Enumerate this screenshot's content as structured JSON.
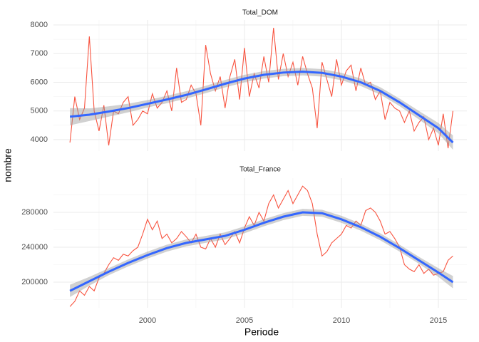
{
  "xlabel": "Periode",
  "ylabel": "nombre",
  "chart_data": [
    {
      "type": "line",
      "title": "Total_DOM",
      "xlim": [
        1995.15,
        2016.47
      ],
      "xticks": [
        2000,
        2005,
        2010,
        2015
      ],
      "xminor": [
        1997.5,
        2002.5,
        2007.5,
        2012.5
      ],
      "ylim": [
        3602,
        8174
      ],
      "yticks": [
        4000,
        5000,
        6000,
        7000,
        8000
      ],
      "yminor": [
        4500,
        5500,
        6500,
        7500
      ],
      "grid": true,
      "x": [
        1996,
        1996.25,
        1996.5,
        1996.75,
        1997,
        1997.25,
        1997.5,
        1997.75,
        1998,
        1998.25,
        1998.5,
        1998.75,
        1999,
        1999.25,
        1999.5,
        1999.75,
        2000,
        2000.25,
        2000.5,
        2000.75,
        2001,
        2001.25,
        2001.5,
        2001.75,
        2002,
        2002.25,
        2002.5,
        2002.75,
        2003,
        2003.25,
        2003.5,
        2003.75,
        2004,
        2004.25,
        2004.5,
        2004.75,
        2005,
        2005.25,
        2005.5,
        2005.75,
        2006,
        2006.25,
        2006.5,
        2006.75,
        2007,
        2007.25,
        2007.5,
        2007.75,
        2008,
        2008.25,
        2008.5,
        2008.75,
        2009,
        2009.25,
        2009.5,
        2009.75,
        2010,
        2010.25,
        2010.5,
        2010.75,
        2011,
        2011.25,
        2011.5,
        2011.75,
        2012,
        2012.25,
        2012.5,
        2012.75,
        2013,
        2013.25,
        2013.5,
        2013.75,
        2014,
        2014.25,
        2014.5,
        2014.75,
        2015,
        2015.25,
        2015.5,
        2015.75
      ],
      "series": [
        {
          "color": "#f8533f",
          "values": [
            3900,
            5500,
            4700,
            5100,
            7600,
            5000,
            4300,
            5200,
            3800,
            5000,
            4900,
            5300,
            5500,
            4500,
            4700,
            5000,
            4900,
            5600,
            5100,
            5300,
            5700,
            5000,
            6500,
            5300,
            5400,
            5900,
            5600,
            4500,
            7300,
            6300,
            5700,
            6200,
            5100,
            6200,
            6800,
            5400,
            7200,
            5500,
            6300,
            5800,
            6900,
            6000,
            7900,
            6100,
            7000,
            6200,
            6700,
            5900,
            6900,
            6300,
            5800,
            4400,
            6700,
            6100,
            5500,
            6800,
            5900,
            6400,
            6600,
            5700,
            6500,
            5900,
            6000,
            5400,
            5700,
            4700,
            5300,
            5100,
            5000,
            4600,
            5000,
            4300,
            4600,
            4800,
            4000,
            4400,
            3800,
            4900,
            3700,
            5000
          ]
        }
      ],
      "smooth": {
        "color": "#3366ff",
        "x": [
          1996,
          1997,
          1998,
          1999,
          2000,
          2001,
          2002,
          2003,
          2004,
          2005,
          2006,
          2007,
          2008,
          2009,
          2010,
          2011,
          2012,
          2013,
          2014,
          2015,
          2015.75
        ],
        "values": [
          4800,
          4870,
          4980,
          5100,
          5250,
          5400,
          5560,
          5750,
          5950,
          6130,
          6260,
          6340,
          6370,
          6330,
          6200,
          6000,
          5700,
          5300,
          4850,
          4400,
          3900
        ],
        "lower": [
          4500,
          4650,
          4800,
          4950,
          5120,
          5270,
          5430,
          5620,
          5820,
          6000,
          6130,
          6210,
          6240,
          6200,
          6070,
          5870,
          5570,
          5170,
          4700,
          4220,
          3650
        ],
        "upper": [
          5100,
          5090,
          5160,
          5250,
          5380,
          5530,
          5690,
          5880,
          6080,
          6260,
          6390,
          6470,
          6500,
          6460,
          6330,
          6130,
          5830,
          5430,
          5000,
          4580,
          4150
        ]
      }
    },
    {
      "type": "line",
      "title": "Total_France",
      "xlim": [
        1995.15,
        2016.47
      ],
      "xticks": [
        2000,
        2005,
        2010,
        2015
      ],
      "xminor": [
        1997.5,
        2002.5,
        2007.5,
        2012.5
      ],
      "ylim": [
        170600,
        319200
      ],
      "yticks": [
        200000,
        240000,
        280000
      ],
      "yminor": [
        180000,
        220000,
        260000,
        300000
      ],
      "grid": true,
      "x": [
        1996,
        1996.25,
        1996.5,
        1996.75,
        1997,
        1997.25,
        1997.5,
        1997.75,
        1998,
        1998.25,
        1998.5,
        1998.75,
        1999,
        1999.25,
        1999.5,
        1999.75,
        2000,
        2000.25,
        2000.5,
        2000.75,
        2001,
        2001.25,
        2001.5,
        2001.75,
        2002,
        2002.25,
        2002.5,
        2002.75,
        2003,
        2003.25,
        2003.5,
        2003.75,
        2004,
        2004.25,
        2004.5,
        2004.75,
        2005,
        2005.25,
        2005.5,
        2005.75,
        2006,
        2006.25,
        2006.5,
        2006.75,
        2007,
        2007.25,
        2007.5,
        2007.75,
        2008,
        2008.25,
        2008.5,
        2008.75,
        2009,
        2009.25,
        2009.5,
        2009.75,
        2010,
        2010.25,
        2010.5,
        2010.75,
        2011,
        2011.25,
        2011.5,
        2011.75,
        2012,
        2012.25,
        2012.5,
        2012.75,
        2013,
        2013.25,
        2013.5,
        2013.75,
        2014,
        2014.25,
        2014.5,
        2014.75,
        2015,
        2015.25,
        2015.5,
        2015.75
      ],
      "series": [
        {
          "color": "#f8533f",
          "values": [
            172000,
            178000,
            190000,
            185000,
            195000,
            190000,
            205000,
            210000,
            220000,
            228000,
            225000,
            232000,
            230000,
            236000,
            240000,
            255000,
            272000,
            260000,
            270000,
            250000,
            255000,
            245000,
            250000,
            258000,
            252000,
            245000,
            255000,
            240000,
            238000,
            250000,
            240000,
            255000,
            243000,
            250000,
            258000,
            245000,
            262000,
            275000,
            265000,
            280000,
            270000,
            290000,
            300000,
            285000,
            295000,
            305000,
            290000,
            300000,
            310000,
            305000,
            290000,
            255000,
            230000,
            235000,
            245000,
            250000,
            255000,
            265000,
            262000,
            270000,
            265000,
            282000,
            285000,
            280000,
            270000,
            255000,
            258000,
            250000,
            240000,
            220000,
            215000,
            212000,
            220000,
            210000,
            215000,
            208000,
            210000,
            212000,
            225000,
            230000
          ]
        }
      ],
      "smooth": {
        "color": "#3366ff",
        "x": [
          1996,
          1997,
          1998,
          1999,
          2000,
          2001,
          2002,
          2003,
          2004,
          2005,
          2006,
          2007,
          2008,
          2009,
          2010,
          2011,
          2012,
          2013,
          2014,
          2015,
          2015.75
        ],
        "values": [
          190000,
          201000,
          212000,
          222000,
          231000,
          239000,
          245000,
          249000,
          253000,
          260000,
          268000,
          275000,
          280000,
          279000,
          272000,
          263000,
          252000,
          239000,
          225000,
          211000,
          200000
        ],
        "lower": [
          183000,
          196000,
          208000,
          218000,
          227000,
          235000,
          241000,
          245000,
          249000,
          256000,
          264000,
          271000,
          276000,
          275000,
          268000,
          259000,
          248000,
          235000,
          221000,
          206000,
          193000
        ],
        "upper": [
          197000,
          206000,
          216000,
          226000,
          235000,
          243000,
          249000,
          253000,
          257000,
          264000,
          272000,
          279000,
          284000,
          283000,
          276000,
          267000,
          256000,
          243000,
          229000,
          216000,
          207000
        ]
      }
    }
  ]
}
